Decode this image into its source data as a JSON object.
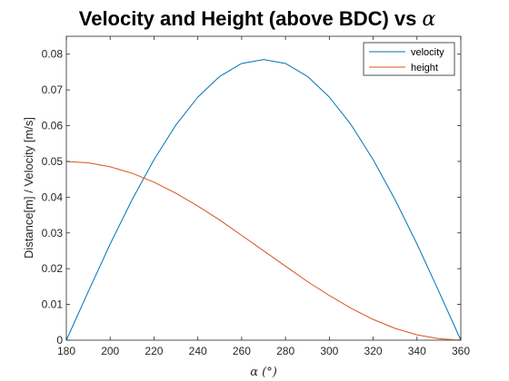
{
  "chart_data": {
    "type": "line",
    "title": "Velocity and Height (above BDC) vs",
    "title_symbol": "α",
    "xlabel": "α (°)",
    "ylabel": "Distance[m] / Velocity [m/s]",
    "xlim": [
      180,
      360
    ],
    "ylim": [
      0,
      0.085
    ],
    "xticks": [
      180,
      200,
      220,
      240,
      260,
      280,
      300,
      320,
      340,
      360
    ],
    "yticks": [
      0,
      0.01,
      0.02,
      0.03,
      0.04,
      0.05,
      0.06,
      0.07,
      0.08
    ],
    "ytick_labels": [
      "0",
      "0.01",
      "0.02",
      "0.03",
      "0.04",
      "0.05",
      "0.06",
      "0.07",
      "0.08"
    ],
    "grid": false,
    "legend_position": "top-right",
    "series": [
      {
        "name": "velocity",
        "color": "#0072BD",
        "x": [
          180,
          190,
          200,
          210,
          220,
          230,
          240,
          250,
          260,
          270,
          280,
          290,
          300,
          310,
          320,
          330,
          340,
          350,
          360
        ],
        "y": [
          0,
          0.0136,
          0.0269,
          0.0393,
          0.0505,
          0.0602,
          0.068,
          0.0738,
          0.0774,
          0.0785,
          0.0774,
          0.0738,
          0.068,
          0.0602,
          0.0505,
          0.0393,
          0.0269,
          0.0136,
          0
        ]
      },
      {
        "name": "height",
        "color": "#D95319",
        "x": [
          180,
          190,
          200,
          210,
          220,
          230,
          240,
          250,
          260,
          270,
          280,
          290,
          300,
          310,
          320,
          330,
          340,
          350,
          360
        ],
        "y": [
          0.05,
          0.0496,
          0.0485,
          0.0467,
          0.0442,
          0.0411,
          0.0375,
          0.0336,
          0.0293,
          0.025,
          0.0207,
          0.0164,
          0.0125,
          0.0089,
          0.0058,
          0.0033,
          0.0015,
          0.0004,
          0
        ]
      }
    ]
  }
}
